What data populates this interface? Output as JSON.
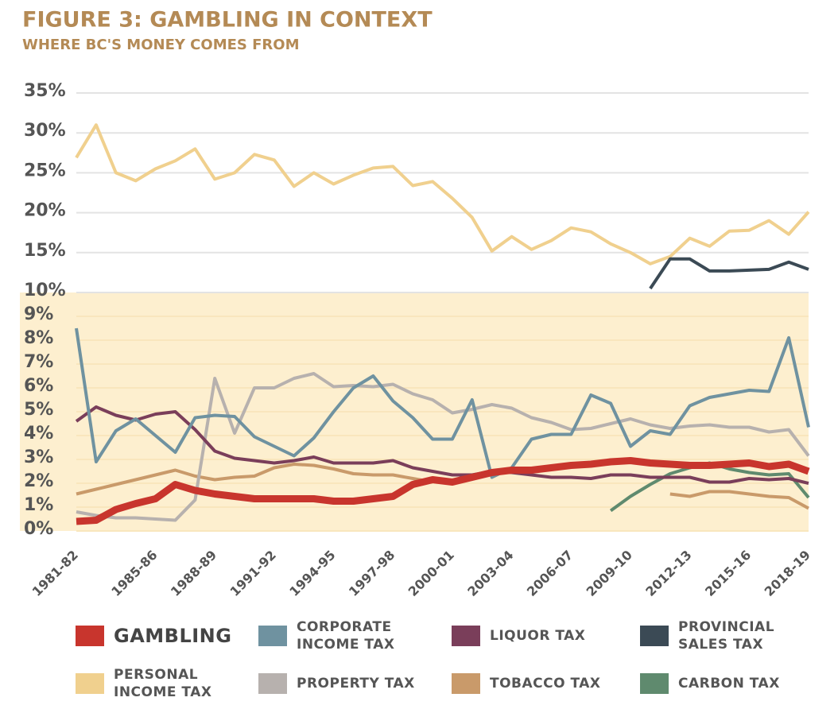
{
  "chart_data": {
    "type": "line",
    "title": "FIGURE 3: GAMBLING IN CONTEXT",
    "subtitle": "WHERE BC'S MONEY COMES FROM",
    "categories": [
      "1981-82",
      null,
      null,
      null,
      "1985-86",
      null,
      null,
      "1988-89",
      null,
      null,
      "1991-92",
      null,
      null,
      "1994-95",
      null,
      null,
      "1997-98",
      null,
      null,
      "2000-01",
      null,
      null,
      "2003-04",
      null,
      null,
      "2006-07",
      null,
      null,
      "2009-10",
      null,
      null,
      "2012-13",
      null,
      null,
      "2015-16",
      null,
      null,
      "2018-19"
    ],
    "ylim": [
      0,
      35
    ],
    "yticks": [
      {
        "value": 0,
        "label": "0%"
      },
      {
        "value": 1,
        "label": "1%"
      },
      {
        "value": 2,
        "label": "2%"
      },
      {
        "value": 3,
        "label": "3%"
      },
      {
        "value": 4,
        "label": "4%"
      },
      {
        "value": 5,
        "label": "5%"
      },
      {
        "value": 6,
        "label": "6%"
      },
      {
        "value": 7,
        "label": "7%"
      },
      {
        "value": 8,
        "label": "8%"
      },
      {
        "value": 9,
        "label": "9%"
      },
      {
        "value": 10,
        "label": "10%"
      },
      {
        "value": 15,
        "label": "15%"
      },
      {
        "value": 20,
        "label": "20%"
      },
      {
        "value": 25,
        "label": "25%"
      },
      {
        "value": 30,
        "label": "30%"
      },
      {
        "value": 35,
        "label": "35%"
      }
    ],
    "shaded_range": [
      0,
      10
    ],
    "shaded_color": "#fdefcf",
    "grid": true,
    "series": [
      {
        "name": "GAMBLING",
        "color": "#c8352d",
        "values": [
          0.4,
          0.45,
          0.9,
          1.15,
          1.35,
          1.95,
          1.7,
          1.55,
          1.45,
          1.35,
          1.35,
          1.35,
          1.35,
          1.25,
          1.25,
          1.35,
          1.45,
          1.95,
          2.15,
          2.05,
          2.25,
          2.45,
          2.55,
          2.55,
          2.65,
          2.75,
          2.8,
          2.9,
          2.95,
          2.85,
          2.8,
          2.75,
          2.75,
          2.8,
          2.85,
          2.7,
          2.8,
          2.5
        ]
      },
      {
        "name": "CORPORATE INCOME TAX",
        "color": "#6f92a0",
        "values": [
          8.5,
          2.9,
          4.2,
          4.7,
          4.0,
          3.3,
          4.75,
          4.85,
          4.8,
          3.95,
          3.55,
          3.15,
          3.9,
          5.0,
          6.0,
          6.5,
          5.45,
          4.75,
          3.85,
          3.85,
          5.5,
          2.25,
          2.65,
          3.85,
          4.05,
          4.05,
          5.7,
          5.35,
          3.55,
          4.2,
          4.05,
          5.25,
          5.6,
          5.75,
          5.9,
          5.85,
          8.1,
          4.35
        ]
      },
      {
        "name": "LIQUOR TAX",
        "color": "#7a3e5a",
        "values": [
          4.6,
          5.2,
          4.85,
          4.65,
          4.9,
          5.0,
          4.25,
          3.35,
          3.05,
          2.95,
          2.85,
          2.95,
          3.1,
          2.85,
          2.85,
          2.85,
          2.95,
          2.65,
          2.5,
          2.35,
          2.35,
          2.5,
          2.45,
          2.35,
          2.25,
          2.25,
          2.2,
          2.35,
          2.35,
          2.25,
          2.25,
          2.25,
          2.05,
          2.05,
          2.2,
          2.15,
          2.2,
          2.0
        ]
      },
      {
        "name": "PROVINCIAL SALES TAX",
        "color": "#3b4a55",
        "values": [
          null,
          null,
          null,
          null,
          null,
          null,
          null,
          null,
          null,
          null,
          null,
          null,
          null,
          null,
          null,
          null,
          null,
          null,
          null,
          null,
          null,
          null,
          null,
          null,
          null,
          null,
          null,
          null,
          null,
          10.5,
          14.2,
          14.2,
          12.7,
          12.7,
          12.8,
          12.9,
          13.8,
          12.9
        ]
      },
      {
        "name": "PERSONAL INCOME TAX",
        "color": "#f0d08e",
        "values": [
          26.9,
          31,
          25,
          24,
          25.5,
          26.5,
          28,
          24.2,
          25,
          27.3,
          26.6,
          23.3,
          25,
          23.6,
          24.7,
          25.6,
          25.8,
          23.4,
          23.9,
          21.8,
          19.4,
          15.2,
          17,
          15.4,
          16.5,
          18.1,
          17.6,
          16.1,
          15,
          13.6,
          14.5,
          16.8,
          15.8,
          17.7,
          17.8,
          19,
          17.3,
          20.1
        ]
      },
      {
        "name": "PROPERTY TAX",
        "color": "#b7b1ae",
        "values": [
          0.8,
          0.65,
          0.55,
          0.55,
          0.5,
          0.45,
          1.3,
          6.4,
          4.1,
          6.0,
          6.0,
          6.4,
          6.6,
          6.05,
          6.1,
          6.05,
          6.15,
          5.75,
          5.5,
          4.95,
          5.1,
          5.3,
          5.15,
          4.75,
          4.55,
          4.25,
          4.3,
          4.5,
          4.7,
          4.45,
          4.3,
          4.4,
          4.45,
          4.35,
          4.35,
          4.15,
          4.25,
          3.15
        ]
      },
      {
        "name": "TOBACCO TAX",
        "color": "#c99a6a",
        "values": [
          1.55,
          1.75,
          1.95,
          2.15,
          2.35,
          2.55,
          2.3,
          2.15,
          2.25,
          2.3,
          2.65,
          2.8,
          2.75,
          2.6,
          2.4,
          2.35,
          2.35,
          2.2,
          2.05,
          null,
          null,
          null,
          null,
          null,
          null,
          null,
          null,
          null,
          null,
          null,
          1.55,
          1.45,
          1.65,
          1.65,
          1.55,
          1.45,
          1.4,
          0.95
        ]
      },
      {
        "name": "CARBON TAX",
        "color": "#5f8a6e",
        "values": [
          null,
          null,
          null,
          null,
          null,
          null,
          null,
          null,
          null,
          null,
          null,
          null,
          null,
          null,
          null,
          null,
          null,
          null,
          null,
          null,
          null,
          null,
          null,
          null,
          null,
          null,
          null,
          0.85,
          1.45,
          1.95,
          2.4,
          2.65,
          2.85,
          2.6,
          2.45,
          2.35,
          2.4,
          1.4
        ]
      }
    ]
  }
}
